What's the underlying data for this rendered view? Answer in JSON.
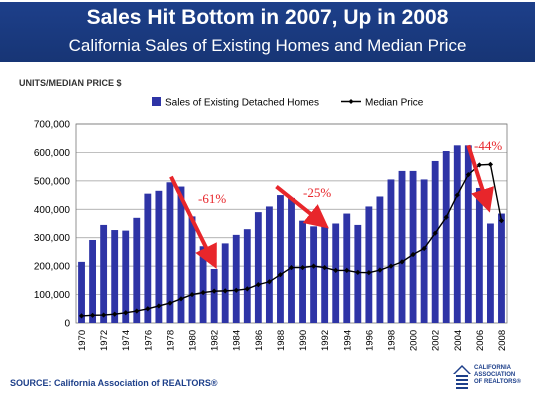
{
  "header": {
    "title": "Sales Hit Bottom in 2007, Up in 2008",
    "subtitle": "California Sales of Existing Homes and Median Price"
  },
  "source": "SOURCE: California Association of REALTORS®",
  "logo": {
    "text": "CALIFORNIA ASSOCIATION OF REALTORS®"
  },
  "colors": {
    "bar": "#2e34a6",
    "line": "#000000",
    "arrow": "#e8262b",
    "header": "#1d3f8a"
  },
  "chart_data": {
    "type": "bar",
    "ylabel": "UNITS/MEDIAN PRICE $",
    "xlabel": "",
    "ylim": [
      0,
      700000
    ],
    "yticks": [
      0,
      100000,
      200000,
      300000,
      400000,
      500000,
      600000,
      700000
    ],
    "ytick_labels": [
      "0",
      "100,000",
      "200,000",
      "300,000",
      "400,000",
      "500,000",
      "600,000",
      "700,000"
    ],
    "grid": true,
    "legend_position": "top",
    "categories": [
      "1970",
      "1971",
      "1972",
      "1973",
      "1974",
      "1975",
      "1976",
      "1977",
      "1978",
      "1979",
      "1980",
      "1981",
      "1982",
      "1983",
      "1984",
      "1985",
      "1986",
      "1987",
      "1988",
      "1989",
      "1990",
      "1991",
      "1992",
      "1993",
      "1994",
      "1995",
      "1996",
      "1997",
      "1998",
      "1999",
      "2000",
      "2001",
      "2002",
      "2003",
      "2004",
      "2005",
      "2006",
      "2007",
      "2008"
    ],
    "xtick_labels": [
      "1970",
      "1972",
      "1974",
      "1976",
      "1978",
      "1980",
      "1982",
      "1984",
      "1986",
      "1988",
      "1990",
      "1992",
      "1994",
      "1996",
      "1998",
      "2000",
      "2002",
      "2004",
      "2006",
      "2008"
    ],
    "series": [
      {
        "name": "Sales of Existing Detached Homes",
        "kind": "bar",
        "values": [
          215000,
          292000,
          345000,
          327000,
          325000,
          370000,
          455000,
          465000,
          495000,
          480000,
          375000,
          270000,
          190000,
          280000,
          310000,
          330000,
          390000,
          410000,
          450000,
          440000,
          360000,
          340000,
          340000,
          350000,
          385000,
          345000,
          410000,
          445000,
          505000,
          535000,
          535000,
          505000,
          570000,
          605000,
          625000,
          625000,
          475000,
          350000,
          385000
        ]
      },
      {
        "name": "Median Price",
        "kind": "line",
        "values": [
          25000,
          27000,
          28000,
          31000,
          36000,
          42000,
          50000,
          60000,
          70000,
          85000,
          100000,
          107000,
          112000,
          113000,
          115000,
          120000,
          135000,
          145000,
          170000,
          195000,
          195000,
          200000,
          195000,
          185000,
          185000,
          178000,
          177000,
          186000,
          200000,
          215000,
          241000,
          262000,
          316000,
          372000,
          450000,
          522000,
          556000,
          558000,
          360000
        ]
      }
    ],
    "annotations": [
      {
        "text": "-61%",
        "from": "1978",
        "to": "1982"
      },
      {
        "text": "-25%",
        "from": "1988",
        "to": "1992"
      },
      {
        "text": "-44%",
        "from": "2005",
        "to": "2008"
      }
    ]
  }
}
